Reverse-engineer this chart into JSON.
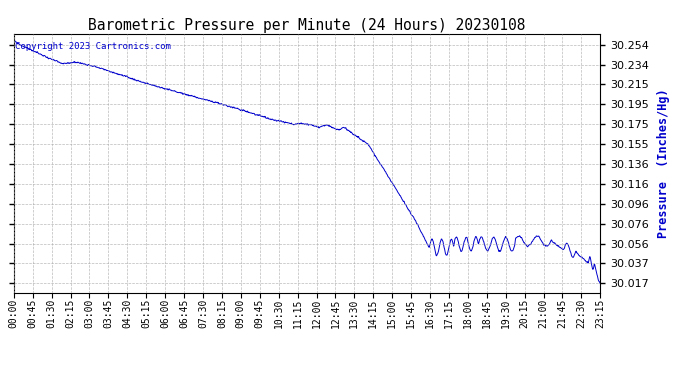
{
  "title": "Barometric Pressure per Minute (24 Hours) 20230108",
  "ylabel": "Pressure  (Inches/Hg)",
  "copyright_text": "Copyright 2023 Cartronics.com",
  "line_color": "#0000cc",
  "ylabel_color": "#0000cc",
  "copyright_color": "#0000cc",
  "background_color": "#ffffff",
  "grid_color": "#aaaaaa",
  "title_color": "#000000",
  "yticks": [
    30.017,
    30.037,
    30.056,
    30.076,
    30.096,
    30.116,
    30.136,
    30.155,
    30.175,
    30.195,
    30.215,
    30.234,
    30.254
  ],
  "ylim": [
    30.008,
    30.265
  ],
  "xtick_labels": [
    "00:00",
    "00:45",
    "01:30",
    "02:15",
    "03:00",
    "03:45",
    "04:30",
    "05:15",
    "06:00",
    "06:45",
    "07:30",
    "08:15",
    "09:00",
    "09:45",
    "10:30",
    "11:15",
    "12:00",
    "12:45",
    "13:30",
    "14:15",
    "15:00",
    "15:45",
    "16:30",
    "17:15",
    "18:00",
    "18:45",
    "19:30",
    "20:15",
    "21:00",
    "21:45",
    "22:30",
    "23:15"
  ],
  "figsize": [
    6.9,
    3.75
  ],
  "dpi": 100
}
